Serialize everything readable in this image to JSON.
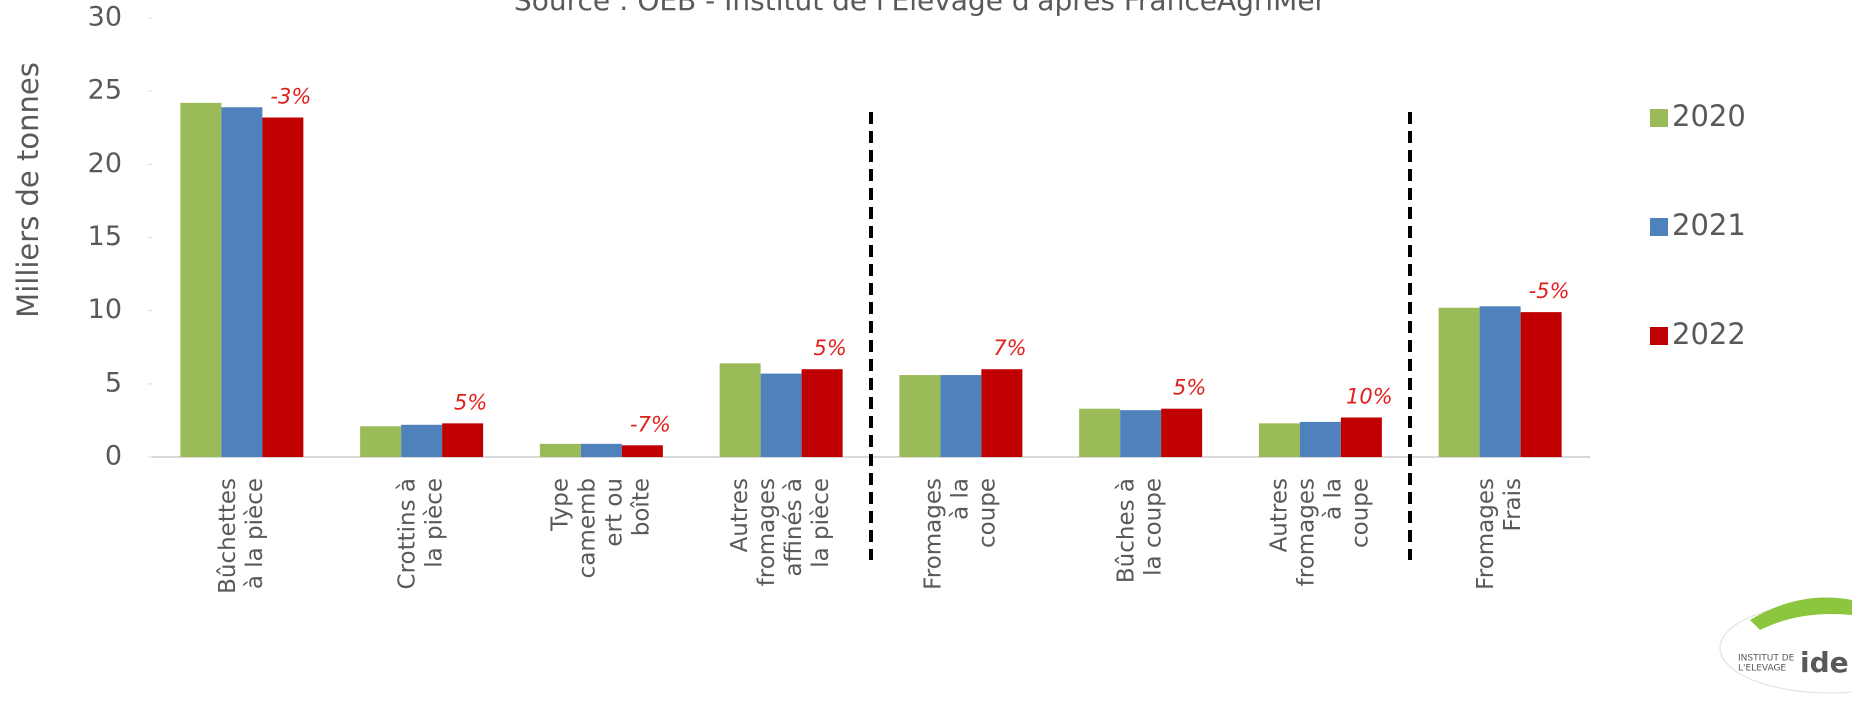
{
  "chart_data": {
    "type": "bar",
    "title": "Source : OEB - Institut de l'Elevage d'après FranceAgriMer",
    "ylabel": "Milliers de tonnes",
    "categories": [
      [
        "Bûchettes",
        "à la pièce"
      ],
      [
        "Crottins à",
        "la pièce"
      ],
      [
        "Type",
        "camemb",
        "ert ou",
        "boîte"
      ],
      [
        "Autres",
        "fromages",
        "affinés à",
        "la pièce"
      ],
      [
        "Fromages",
        "à la",
        "coupe"
      ],
      [
        "Bûches à",
        "la coupe"
      ],
      [
        "Autres",
        "fromages",
        "à la",
        "coupe"
      ],
      [
        "Fromages",
        "Frais"
      ]
    ],
    "series": [
      {
        "name": "2020",
        "color": "#9bbb59",
        "values": [
          24.2,
          2.1,
          0.9,
          6.4,
          5.6,
          3.3,
          2.3,
          10.2
        ]
      },
      {
        "name": "2021",
        "color": "#4f81bd",
        "values": [
          23.9,
          2.2,
          0.9,
          5.7,
          5.6,
          3.2,
          2.4,
          10.3
        ]
      },
      {
        "name": "2022",
        "color": "#c00000",
        "values": [
          23.2,
          2.3,
          0.8,
          6.0,
          6.0,
          3.3,
          2.7,
          9.9
        ]
      }
    ],
    "change_labels": [
      "-3%",
      "5%",
      "-7%",
      "5%",
      "7%",
      "5%",
      "10%",
      "-5%"
    ],
    "ylim": [
      0,
      30
    ],
    "yticks": [
      0,
      5,
      10,
      15,
      20,
      25,
      30
    ],
    "grid": false,
    "legend": "right",
    "logo_text": [
      "INSTITUT DE",
      "L'ELEVAGE",
      "ide"
    ]
  }
}
